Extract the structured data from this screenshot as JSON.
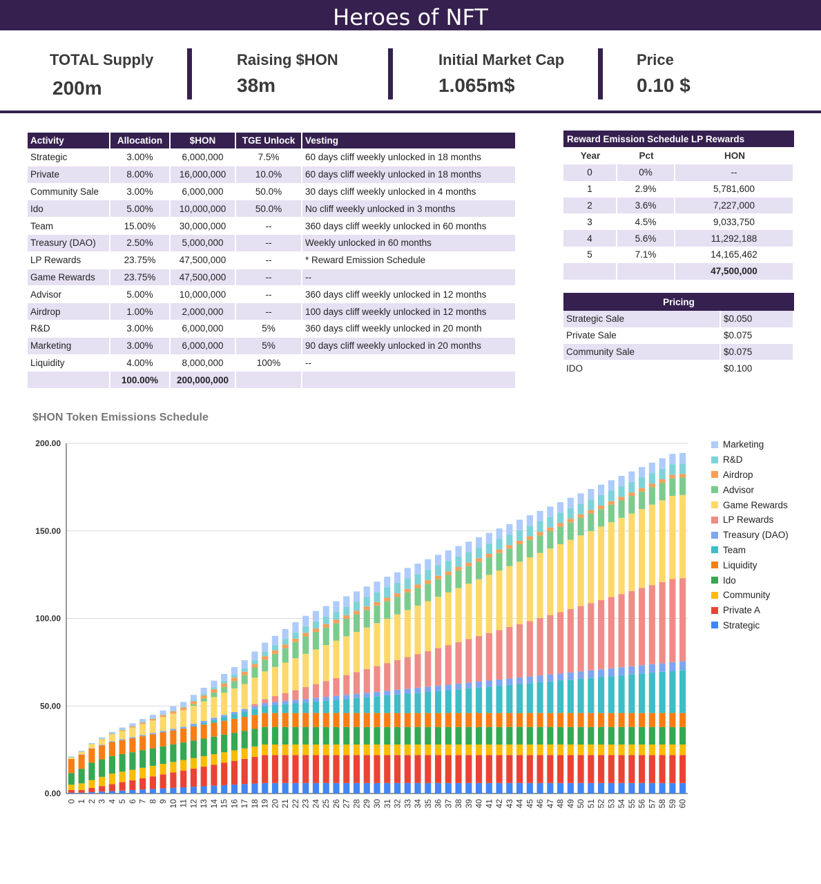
{
  "header": {
    "title": "Heroes of NFT"
  },
  "stats": [
    {
      "label": "TOTAL Supply",
      "value": "200m"
    },
    {
      "label": "Raising $HON",
      "value": "38m"
    },
    {
      "label": "Initial Market Cap",
      "value": "1.065m$"
    },
    {
      "label": "Price",
      "value": "0.10 $"
    }
  ],
  "allocation_table": {
    "headers": [
      "Activity",
      "Allocation",
      "$HON",
      "TGE Unlock",
      "Vesting"
    ],
    "rows": [
      [
        "Strategic",
        "3.00%",
        "6,000,000",
        "7.5%",
        "60 days cliff weekly unlocked in 18 months"
      ],
      [
        "Private",
        "8.00%",
        "16,000,000",
        "10.0%",
        "60 days cliff weekly unlocked in 18 months"
      ],
      [
        "Community Sale",
        "3.00%",
        "6,000,000",
        "50.0%",
        "30 days cliff weekly unlocked in 4 months"
      ],
      [
        "Ido",
        "5.00%",
        "10,000,000",
        "50.0%",
        "No cliff weekly unlocked in 3 months"
      ],
      [
        "Team",
        "15.00%",
        "30,000,000",
        "--",
        "360 days cliff weekly unlocked in 60 months"
      ],
      [
        "Treasury (DAO)",
        "2.50%",
        "5,000,000",
        "--",
        "Weekly unlocked in 60 months"
      ],
      [
        "LP Rewards",
        "23.75%",
        "47,500,000",
        "--",
        "* Reward Emission Schedule"
      ],
      [
        "Game Rewards",
        "23.75%",
        "47,500,000",
        "--",
        "--"
      ],
      [
        "Advisor",
        "5.00%",
        "10,000,000",
        "--",
        "360 days cliff weekly unlocked in 12 months"
      ],
      [
        "Airdrop",
        "1.00%",
        "2,000,000",
        "--",
        "100 days cliff weekly unlocked in 12 months"
      ],
      [
        "R&D",
        "3.00%",
        "6,000,000",
        "5%",
        "360 days cliff weekly unlocked in 20 month"
      ],
      [
        "Marketing",
        "3.00%",
        "6,000,000",
        "5%",
        "90 days cliff weekly unlocked in 20 months"
      ],
      [
        "Liquidity",
        "4.00%",
        "8,000,000",
        "100%",
        "--"
      ]
    ],
    "total": [
      "",
      "100.00%",
      "200,000,000",
      "",
      ""
    ]
  },
  "reward_table": {
    "title": "Reward Emission Schedule LP Rewards",
    "headers": [
      "Year",
      "Pct",
      "HON"
    ],
    "rows": [
      [
        "0",
        "0%",
        "--"
      ],
      [
        "1",
        "2.9%",
        "5,781,600"
      ],
      [
        "2",
        "3.6%",
        "7,227,000"
      ],
      [
        "3",
        "4.5%",
        "9,033,750"
      ],
      [
        "4",
        "5.6%",
        "11,292,188"
      ],
      [
        "5",
        "7.1%",
        "14,165,462"
      ]
    ],
    "total": [
      "",
      "",
      "47,500,000"
    ]
  },
  "pricing_table": {
    "title": "Pricing",
    "rows": [
      [
        "Strategic Sale",
        "$0.050"
      ],
      [
        "Private Sale",
        "$0.075"
      ],
      [
        "Community Sale",
        "$0.075"
      ],
      [
        "IDO",
        "$0.100"
      ]
    ]
  },
  "chart_data": {
    "type": "bar",
    "stacked": true,
    "title": "$HON Token Emissions Schedule",
    "xlabel": "",
    "ylabel": "",
    "ylim": [
      0,
      200
    ],
    "yticks": [
      "0.00",
      "50.00",
      "100.00",
      "150.00",
      "200.00"
    ],
    "categories": [
      0,
      1,
      2,
      3,
      4,
      5,
      6,
      7,
      8,
      9,
      10,
      11,
      12,
      13,
      14,
      15,
      16,
      17,
      18,
      19,
      20,
      21,
      22,
      23,
      24,
      25,
      26,
      27,
      28,
      29,
      30,
      31,
      32,
      33,
      34,
      35,
      36,
      37,
      38,
      39,
      40,
      41,
      42,
      43,
      44,
      45,
      46,
      47,
      48,
      49,
      50,
      51,
      52,
      53,
      54,
      55,
      56,
      57,
      58,
      59,
      60
    ],
    "legend_position": "right",
    "stack_order_bottom_to_top": [
      "Strategic",
      "Private A",
      "Community",
      "Ido",
      "Liquidity",
      "Team",
      "Treasury (DAO)",
      "LP Rewards",
      "Game Rewards",
      "Advisor",
      "Airdrop",
      "R&D",
      "Marketing"
    ],
    "series": [
      {
        "name": "Marketing",
        "color": "#aecbfa",
        "total": 6.0,
        "start": 0.3,
        "begin": 3,
        "months": 20
      },
      {
        "name": "R&D",
        "color": "#7fd3d8",
        "total": 6.0,
        "start": 0.3,
        "begin": 12,
        "months": 20
      },
      {
        "name": "Airdrop",
        "color": "#f5a05a",
        "total": 2.0,
        "start": 0,
        "begin": 3,
        "months": 12
      },
      {
        "name": "Advisor",
        "color": "#7ccb8e",
        "total": 10.0,
        "start": 0,
        "begin": 12,
        "months": 12
      },
      {
        "name": "Game Rewards",
        "color": "#fcd96a",
        "total": 47.5,
        "start": 0,
        "begin": 0,
        "months": 60
      },
      {
        "name": "LP Rewards",
        "color": "#ef8c88",
        "total": 47.5,
        "start": 0,
        "begin": 18,
        "months": 42
      },
      {
        "name": "Treasury (DAO)",
        "color": "#7ea6f0",
        "total": 5.0,
        "start": 0,
        "begin": 0,
        "months": 60
      },
      {
        "name": "Team",
        "color": "#3fbcc6",
        "total": 30.0,
        "start": 0,
        "begin": 12,
        "months": 60
      },
      {
        "name": "Liquidity",
        "color": "#f97d13",
        "total": 8.0,
        "start": 8.0,
        "begin": 0,
        "months": 1
      },
      {
        "name": "Ido",
        "color": "#34a853",
        "total": 10.0,
        "start": 5.0,
        "begin": 0,
        "months": 3
      },
      {
        "name": "Community",
        "color": "#fbbc04",
        "total": 6.0,
        "start": 3.0,
        "begin": 1,
        "months": 4
      },
      {
        "name": "Private A",
        "color": "#ea4335",
        "total": 16.0,
        "start": 1.6,
        "begin": 2,
        "months": 18
      },
      {
        "name": "Strategic",
        "color": "#4285f4",
        "total": 6.0,
        "start": 0.45,
        "begin": 2,
        "months": 18
      }
    ]
  }
}
